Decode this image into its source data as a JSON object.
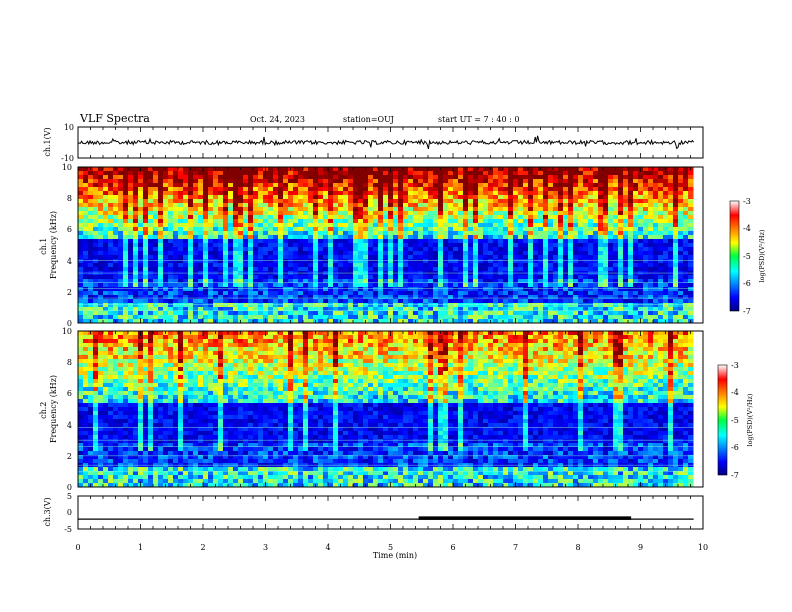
{
  "header": {
    "title": "VLF Spectra",
    "date": "Oct. 24, 2023",
    "station": "station=OUJ",
    "start_ut": "start  UT =   7 : 40 : 0"
  },
  "chart_data": [
    {
      "type": "line",
      "panel": "ch1-waveform",
      "ylabel": "ch.1(V)",
      "ylim": [
        -10,
        10
      ],
      "yticks": [
        "10",
        "-10"
      ],
      "xlim": [
        0,
        10
      ],
      "trace_extent_min": 9.85,
      "baseline": 0
    },
    {
      "type": "heatmap",
      "panel": "ch1-spectrogram",
      "ylabel": "ch.1\nFrequency  (kHz)",
      "ylim": [
        0,
        10
      ],
      "yticks": [
        "0",
        "2",
        "4",
        "6",
        "8",
        "10"
      ],
      "xlim": [
        0,
        10
      ],
      "colorbar": {
        "label": "log(PSD)(V²/Hz)",
        "min": -7,
        "max": -3,
        "ticks": [
          "-3",
          "-4",
          "-5",
          "-6",
          "-7"
        ]
      },
      "time_extent_min": 9.85
    },
    {
      "type": "heatmap",
      "panel": "ch2-spectrogram",
      "ylabel": "ch.2\nFrequency  (kHz)",
      "ylim": [
        0,
        10
      ],
      "yticks": [
        "0",
        "2",
        "4",
        "6",
        "8",
        "10"
      ],
      "xlim": [
        0,
        10
      ],
      "colorbar": {
        "label": "log(PSD)(V²/Hz)",
        "min": -7,
        "max": -3,
        "ticks": [
          "-3",
          "-4",
          "-5",
          "-6",
          "-7"
        ]
      },
      "time_extent_min": 9.85
    },
    {
      "type": "line",
      "panel": "ch3-waveform",
      "ylabel": "ch.3(V)",
      "ylim": [
        -5,
        5
      ],
      "yticks": [
        "5",
        "0",
        "-5"
      ],
      "xlim": [
        0,
        10
      ],
      "level": -2,
      "thick_segment_min": [
        5.45,
        8.85
      ]
    }
  ],
  "xaxis": {
    "label": "Time  (min)",
    "ticks": [
      "0",
      "1",
      "2",
      "3",
      "4",
      "5",
      "6",
      "7",
      "8",
      "9",
      "10"
    ]
  }
}
